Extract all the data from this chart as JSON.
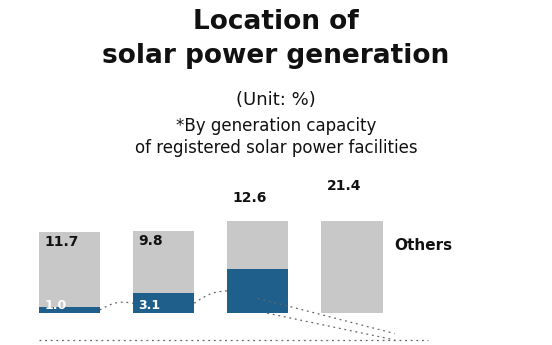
{
  "title_line1": "Location of",
  "title_line2": "solar power generation",
  "subtitle1": "(Unit: %)",
  "subtitle2": "*By generation capacity",
  "subtitle3": "of registered solar power facilities",
  "bars": [
    {
      "grey_val": 11.7,
      "blue_val": 1.0,
      "label_grey": "11.7",
      "label_blue": "1.0"
    },
    {
      "grey_val": 9.8,
      "blue_val": 3.1,
      "label_grey": "9.8",
      "label_blue": "3.1"
    },
    {
      "grey_val": 12.6,
      "blue_val": 7.0,
      "label_grey": "12.6",
      "label_blue": ""
    },
    {
      "grey_val": 21.4,
      "blue_val": 0.0,
      "label_grey": "21.4",
      "label_blue": ""
    }
  ],
  "others_label": "Others",
  "bar_width": 0.65,
  "grey_color": "#c8c8c8",
  "blue_color": "#1f5f8b",
  "background_color": "#ffffff",
  "text_color": "#111111",
  "title_fontsize": 19,
  "subtitle1_fontsize": 13,
  "subtitle2_fontsize": 12,
  "dotted_line_color": "#666666"
}
